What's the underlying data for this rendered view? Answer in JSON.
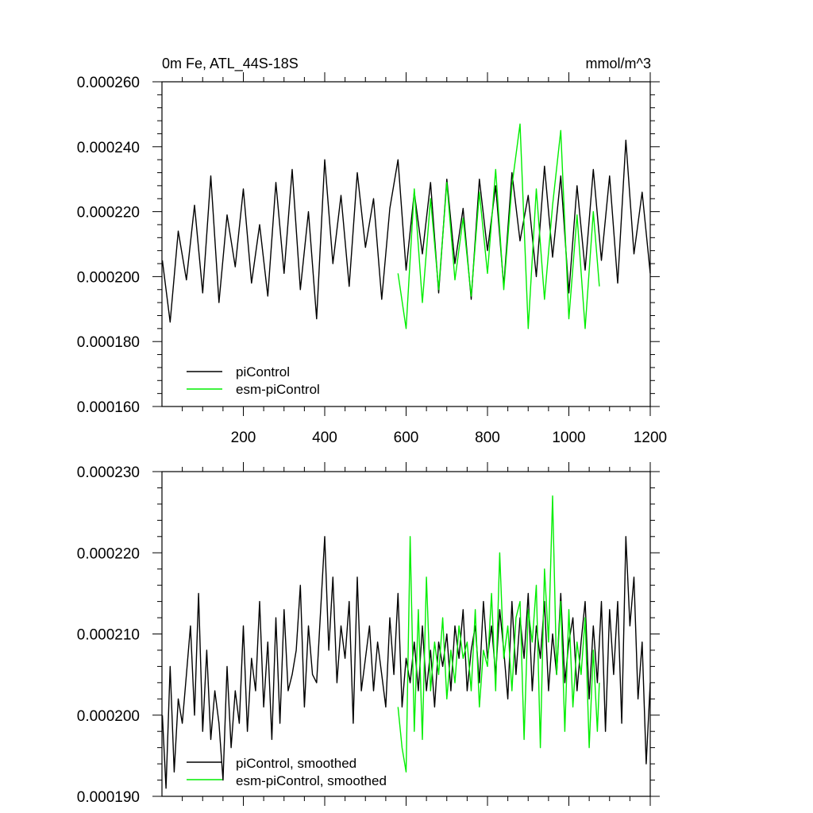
{
  "chart_data": [
    {
      "type": "line",
      "title": "0m Fe, ATL_44S-18S",
      "units": "mmol/m^3",
      "xlim": [
        0,
        1200
      ],
      "ylim": [
        0.00016,
        0.00026
      ],
      "x_ticks": [
        200,
        400,
        600,
        800,
        1000,
        1200
      ],
      "x_tick_labels": [
        "200",
        "400",
        "600",
        "800",
        "1000",
        "1200"
      ],
      "y_ticks": [
        0.00016,
        0.00018,
        0.0002,
        0.00022,
        0.00024,
        0.00026
      ],
      "y_tick_labels": [
        "0.000160",
        "0.000180",
        "0.000200",
        "0.000220",
        "0.000240",
        "0.000260"
      ],
      "legend_position": "bottom-left",
      "series": [
        {
          "name": "piControl",
          "color": "#000000",
          "x": [
            1,
            20,
            40,
            60,
            80,
            100,
            120,
            140,
            160,
            180,
            200,
            220,
            240,
            260,
            280,
            300,
            320,
            340,
            360,
            380,
            400,
            420,
            440,
            460,
            480,
            500,
            520,
            540,
            560,
            580,
            600,
            620,
            640,
            660,
            680,
            700,
            720,
            740,
            760,
            780,
            800,
            820,
            840,
            860,
            880,
            900,
            920,
            940,
            960,
            980,
            1000,
            1020,
            1040,
            1060,
            1080,
            1100,
            1120,
            1140,
            1160,
            1180,
            1200
          ],
          "y": [
            0.000205,
            0.000186,
            0.000214,
            0.000199,
            0.000222,
            0.000195,
            0.000231,
            0.000192,
            0.000219,
            0.000203,
            0.000227,
            0.000198,
            0.000216,
            0.000194,
            0.000229,
            0.000201,
            0.000233,
            0.000196,
            0.00022,
            0.000187,
            0.000236,
            0.000204,
            0.000225,
            0.000197,
            0.000232,
            0.000209,
            0.000224,
            0.000193,
            0.000221,
            0.000236,
            0.000202,
            0.000226,
            0.000207,
            0.000229,
            0.000195,
            0.00023,
            0.000204,
            0.000221,
            0.000193,
            0.00023,
            0.000208,
            0.000228,
            0.000197,
            0.000232,
            0.000211,
            0.000225,
            0.0002,
            0.000234,
            0.000206,
            0.000231,
            0.000195,
            0.000228,
            0.000202,
            0.000233,
            0.000205,
            0.000231,
            0.000198,
            0.000242,
            0.000207,
            0.000226,
            0.000201
          ]
        },
        {
          "name": "esm-piControl",
          "color": "#00ee00",
          "x": [
            580,
            600,
            620,
            640,
            660,
            680,
            700,
            720,
            740,
            760,
            780,
            800,
            820,
            840,
            860,
            880,
            900,
            920,
            940,
            960,
            980,
            1000,
            1020,
            1040,
            1060,
            1075
          ],
          "y": [
            0.000201,
            0.000184,
            0.000227,
            0.000192,
            0.000224,
            0.000196,
            0.000229,
            0.000199,
            0.000218,
            0.000194,
            0.000226,
            0.000201,
            0.000233,
            0.000196,
            0.000228,
            0.000247,
            0.000184,
            0.000227,
            0.000193,
            0.000222,
            0.000245,
            0.000187,
            0.000219,
            0.000184,
            0.00022,
            0.000197
          ]
        }
      ]
    },
    {
      "type": "line",
      "xlim": [
        0,
        1200
      ],
      "ylim": [
        0.00019,
        0.00023
      ],
      "x_ticks": [
        200,
        400,
        600,
        800,
        1000,
        1200
      ],
      "y_ticks": [
        0.00019,
        0.0002,
        0.00021,
        0.00022,
        0.00023
      ],
      "y_tick_labels": [
        "0.000190",
        "0.000200",
        "0.000210",
        "0.000220",
        "0.000230"
      ],
      "legend_position": "bottom-left",
      "series": [
        {
          "name": "piControl, smoothed",
          "color": "#000000",
          "x": [
            1,
            10,
            20,
            30,
            40,
            50,
            60,
            70,
            80,
            90,
            100,
            110,
            120,
            130,
            140,
            150,
            160,
            170,
            180,
            190,
            200,
            210,
            220,
            230,
            240,
            250,
            260,
            270,
            280,
            290,
            300,
            310,
            320,
            330,
            340,
            350,
            360,
            370,
            380,
            390,
            400,
            410,
            420,
            430,
            440,
            450,
            460,
            470,
            480,
            490,
            500,
            510,
            520,
            530,
            540,
            550,
            560,
            570,
            580,
            590,
            600,
            610,
            620,
            630,
            640,
            650,
            660,
            670,
            680,
            690,
            700,
            710,
            720,
            730,
            740,
            750,
            760,
            770,
            780,
            790,
            800,
            810,
            820,
            830,
            840,
            850,
            860,
            870,
            880,
            890,
            900,
            910,
            920,
            930,
            940,
            950,
            960,
            970,
            980,
            990,
            1000,
            1010,
            1020,
            1030,
            1040,
            1050,
            1060,
            1070,
            1080,
            1090,
            1100,
            1110,
            1120,
            1130,
            1140,
            1150,
            1160,
            1170,
            1180,
            1190,
            1200
          ],
          "y": [
            0.0002,
            0.000191,
            0.000206,
            0.000193,
            0.000202,
            0.000199,
            0.000205,
            0.000211,
            0.0002,
            0.000215,
            0.000198,
            0.000208,
            0.000197,
            0.000203,
            0.000199,
            0.000192,
            0.000206,
            0.000196,
            0.000203,
            0.000199,
            0.000211,
            0.000198,
            0.000207,
            0.000203,
            0.000214,
            0.000201,
            0.000209,
            0.000197,
            0.000212,
            0.000199,
            0.000213,
            0.000203,
            0.000205,
            0.000208,
            0.000216,
            0.000201,
            0.000211,
            0.000205,
            0.000204,
            0.000213,
            0.000222,
            0.000208,
            0.000217,
            0.000204,
            0.000211,
            0.000207,
            0.000214,
            0.000199,
            0.000217,
            0.000203,
            0.000207,
            0.000211,
            0.000203,
            0.000209,
            0.000205,
            0.000201,
            0.000212,
            0.000205,
            0.000215,
            0.000201,
            0.000207,
            0.000204,
            0.000209,
            0.000203,
            0.000211,
            0.000203,
            0.000208,
            0.000201,
            0.000209,
            0.000206,
            0.00021,
            0.000203,
            0.000211,
            0.000207,
            0.000213,
            0.000203,
            0.000208,
            0.000211,
            0.000204,
            0.000214,
            0.000207,
            0.000211,
            0.000205,
            0.000213,
            0.000208,
            0.000202,
            0.000214,
            0.000205,
            0.000212,
            0.000207,
            0.000215,
            0.000203,
            0.000211,
            0.000207,
            0.000214,
            0.000203,
            0.00021,
            0.000205,
            0.000215,
            0.000204,
            0.000209,
            0.000212,
            0.000203,
            0.000209,
            0.000214,
            0.000202,
            0.000211,
            0.000204,
            0.000214,
            0.000198,
            0.000213,
            0.000205,
            0.000214,
            0.000199,
            0.000222,
            0.000211,
            0.000217,
            0.000202,
            0.000209,
            0.000194,
            0.000204
          ]
        },
        {
          "name": "esm-piControl, smoothed",
          "color": "#00ee00",
          "x": [
            580,
            590,
            600,
            610,
            620,
            630,
            640,
            650,
            660,
            670,
            680,
            690,
            700,
            710,
            720,
            730,
            740,
            750,
            760,
            770,
            780,
            790,
            800,
            810,
            820,
            830,
            840,
            850,
            860,
            870,
            880,
            890,
            900,
            910,
            920,
            930,
            940,
            950,
            960,
            970,
            980,
            990,
            1000,
            1010,
            1020,
            1030,
            1040,
            1050,
            1060,
            1070,
            1075
          ],
          "y": [
            0.000201,
            0.000196,
            0.000193,
            0.000222,
            0.000198,
            0.000213,
            0.000197,
            0.000217,
            0.000203,
            0.000209,
            0.000205,
            0.000212,
            0.000202,
            0.000208,
            0.000204,
            0.000211,
            0.000207,
            0.000209,
            0.000203,
            0.000213,
            0.000201,
            0.000208,
            0.000206,
            0.000215,
            0.000203,
            0.00022,
            0.000207,
            0.000211,
            0.000203,
            0.000212,
            0.000214,
            0.000197,
            0.000213,
            0.000209,
            0.000216,
            0.000196,
            0.000218,
            0.000209,
            0.000227,
            0.000205,
            0.000214,
            0.000198,
            0.000213,
            0.000201,
            0.000209,
            0.000205,
            0.000212,
            0.000196,
            0.000208,
            0.000198,
            0.000204
          ]
        }
      ]
    }
  ]
}
